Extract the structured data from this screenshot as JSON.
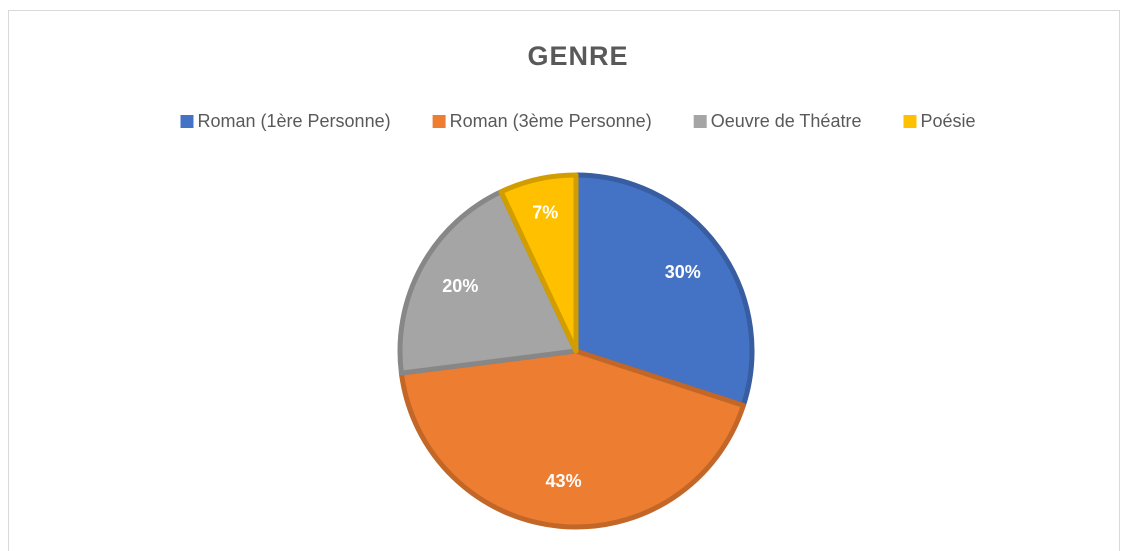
{
  "chart_data": {
    "type": "pie",
    "title": "GENRE",
    "categories": [
      "Roman (1ère Personne)",
      "Roman (3ème Personne)",
      "Oeuvre de Théatre",
      "Poésie"
    ],
    "values": [
      30,
      43,
      20,
      7
    ],
    "value_labels": [
      "30%",
      "43%",
      "20%",
      "7%"
    ],
    "colors": [
      "#4472c4",
      "#ed7d31",
      "#a5a5a5",
      "#ffc000"
    ],
    "legend": "top"
  }
}
